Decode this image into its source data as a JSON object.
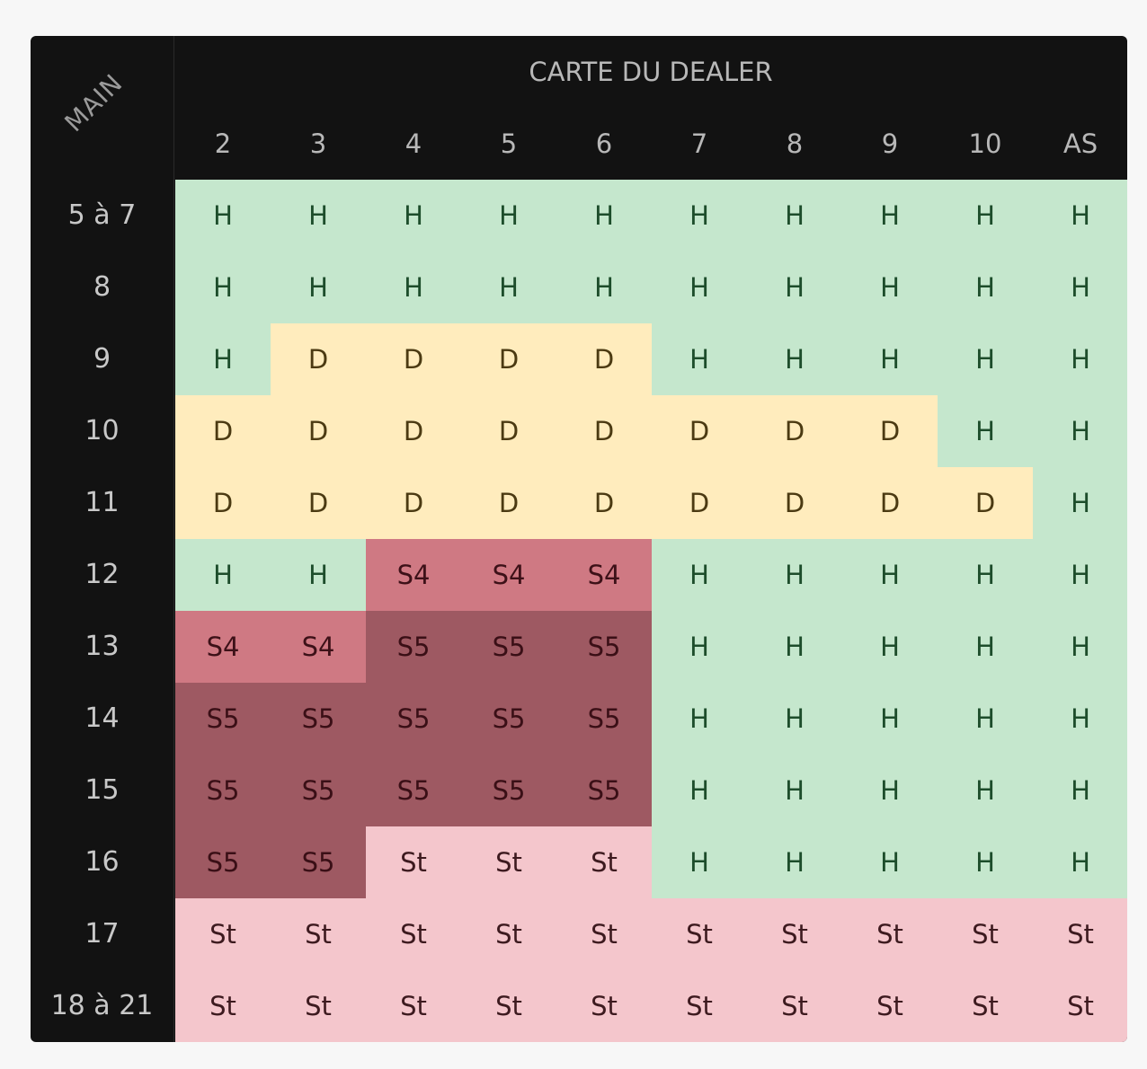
{
  "corner_label": "MAIN",
  "dealer_title": "CARTE DU DEALER",
  "columns": [
    "2",
    "3",
    "4",
    "5",
    "6",
    "7",
    "8",
    "9",
    "10",
    "AS"
  ],
  "rows": [
    {
      "label": "5 à 7",
      "cells": [
        "H",
        "H",
        "H",
        "H",
        "H",
        "H",
        "H",
        "H",
        "H",
        "H"
      ]
    },
    {
      "label": "8",
      "cells": [
        "H",
        "H",
        "H",
        "H",
        "H",
        "H",
        "H",
        "H",
        "H",
        "H"
      ]
    },
    {
      "label": "9",
      "cells": [
        "H",
        "D",
        "D",
        "D",
        "D",
        "H",
        "H",
        "H",
        "H",
        "H"
      ]
    },
    {
      "label": "10",
      "cells": [
        "D",
        "D",
        "D",
        "D",
        "D",
        "D",
        "D",
        "D",
        "H",
        "H"
      ]
    },
    {
      "label": "11",
      "cells": [
        "D",
        "D",
        "D",
        "D",
        "D",
        "D",
        "D",
        "D",
        "D",
        "H"
      ]
    },
    {
      "label": "12",
      "cells": [
        "H",
        "H",
        "S4",
        "S4",
        "S4",
        "H",
        "H",
        "H",
        "H",
        "H"
      ]
    },
    {
      "label": "13",
      "cells": [
        "S4",
        "S4",
        "S5",
        "S5",
        "S5",
        "H",
        "H",
        "H",
        "H",
        "H"
      ]
    },
    {
      "label": "14",
      "cells": [
        "S5",
        "S5",
        "S5",
        "S5",
        "S5",
        "H",
        "H",
        "H",
        "H",
        "H"
      ]
    },
    {
      "label": "15",
      "cells": [
        "S5",
        "S5",
        "S5",
        "S5",
        "S5",
        "H",
        "H",
        "H",
        "H",
        "H"
      ]
    },
    {
      "label": "16",
      "cells": [
        "S5",
        "S5",
        "St",
        "St",
        "St",
        "H",
        "H",
        "H",
        "H",
        "H"
      ]
    },
    {
      "label": "17",
      "cells": [
        "St",
        "St",
        "St",
        "St",
        "St",
        "St",
        "St",
        "St",
        "St",
        "St"
      ]
    },
    {
      "label": "18 à 21",
      "cells": [
        "St",
        "St",
        "St",
        "St",
        "St",
        "St",
        "St",
        "St",
        "St",
        "St"
      ]
    }
  ],
  "colors": {
    "H": "#c5e7cd",
    "D": "#ffecbd",
    "S4": "#cf7983",
    "S5": "#9e5962",
    "St": "#f4c6cc",
    "panel": "#121212"
  }
}
